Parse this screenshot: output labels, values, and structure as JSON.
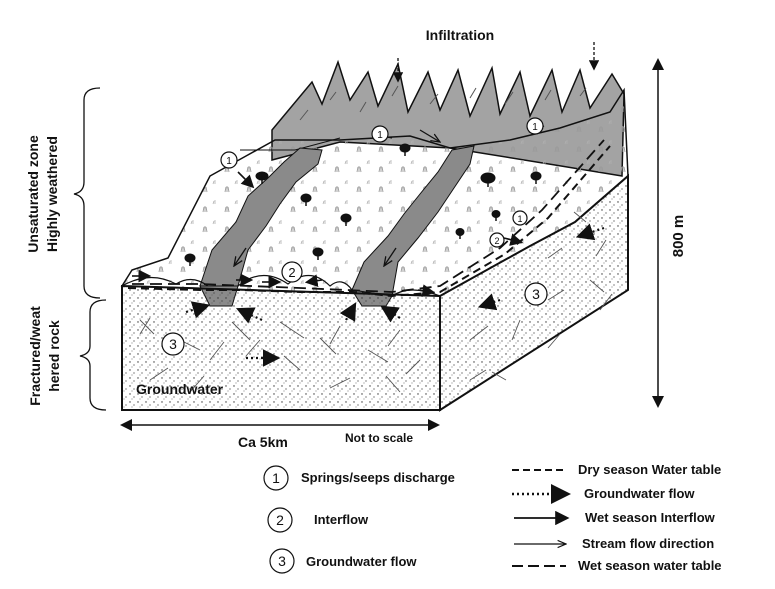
{
  "diagram": {
    "title": "Infiltration",
    "zones": {
      "unsaturated_line1": "Unsaturated zone",
      "unsaturated_line2": "Highly weathered",
      "fractured_line1": "Fractured/weat",
      "fractured_line2": "hered rock"
    },
    "height_label": "800 m",
    "groundwater_label": "Groundwater",
    "width_label": "Ca 5km",
    "scale_note": "Not to scale",
    "markers": {
      "one": "1",
      "two": "2",
      "three": "3"
    }
  },
  "legend": {
    "items_left": [
      {
        "number": "1",
        "label": "Springs/seeps discharge"
      },
      {
        "number": "2",
        "label": "Interflow"
      },
      {
        "number": "3",
        "label": "Groundwater flow"
      }
    ],
    "items_right": [
      {
        "style": "dashed",
        "label": "Dry season Water table"
      },
      {
        "style": "dotted-arrow",
        "label": "Groundwater flow"
      },
      {
        "style": "solid-arrow",
        "label": "Wet season Interflow"
      },
      {
        "style": "thin-arrow",
        "label": "Stream flow direction"
      },
      {
        "style": "long-dash",
        "label": "Wet season water table"
      }
    ]
  },
  "colors": {
    "stroke": "#111111",
    "channel": "#8a8a8a",
    "ridge": "#a3a3a3",
    "tree": "#111111"
  }
}
